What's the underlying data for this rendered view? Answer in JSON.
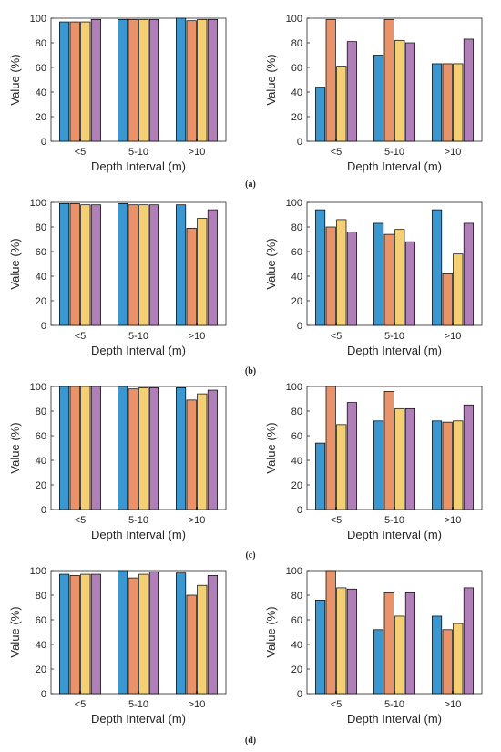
{
  "colors": {
    "series": [
      "#3a97cf",
      "#e8936a",
      "#f4cf73",
      "#b07fb8"
    ],
    "axis": "#262626"
  },
  "panel_labels": [
    "(a)",
    "(b)",
    "(c)",
    "(d)"
  ],
  "chart_data": [
    {
      "type": "bar",
      "row": 0,
      "col": 0,
      "categories": [
        "<5",
        "5-10",
        ">10"
      ],
      "series": [
        {
          "values": [
            97,
            99,
            100
          ]
        },
        {
          "values": [
            97,
            99,
            98
          ]
        },
        {
          "values": [
            97,
            99,
            99
          ]
        },
        {
          "values": [
            99,
            99,
            99
          ]
        }
      ],
      "xlabel": "Depth Interval (m)",
      "ylabel": "Value (%)",
      "ylim": [
        0,
        100
      ],
      "yticks": [
        0,
        20,
        40,
        60,
        80,
        100
      ],
      "grid": false,
      "legend": "none"
    },
    {
      "type": "bar",
      "row": 0,
      "col": 1,
      "categories": [
        "<5",
        "5-10",
        ">10"
      ],
      "series": [
        {
          "values": [
            44,
            70,
            63
          ]
        },
        {
          "values": [
            99,
            99,
            63
          ]
        },
        {
          "values": [
            61,
            82,
            63
          ]
        },
        {
          "values": [
            81,
            80,
            83
          ]
        }
      ],
      "xlabel": "Depth Interval (m)",
      "ylabel": "Value (%)",
      "ylim": [
        0,
        100
      ],
      "yticks": [
        0,
        20,
        40,
        60,
        80,
        100
      ],
      "grid": false,
      "legend": "none"
    },
    {
      "type": "bar",
      "row": 1,
      "col": 0,
      "categories": [
        "<5",
        "5-10",
        ">10"
      ],
      "series": [
        {
          "values": [
            99,
            99,
            98
          ]
        },
        {
          "values": [
            99,
            98,
            79
          ]
        },
        {
          "values": [
            98,
            98,
            87
          ]
        },
        {
          "values": [
            98,
            98,
            94
          ]
        }
      ],
      "xlabel": "Depth Interval (m)",
      "ylabel": "Value (%)",
      "ylim": [
        0,
        100
      ],
      "yticks": [
        0,
        20,
        40,
        60,
        80,
        100
      ],
      "grid": false,
      "legend": "none"
    },
    {
      "type": "bar",
      "row": 1,
      "col": 1,
      "categories": [
        "<5",
        "5-10",
        ">10"
      ],
      "series": [
        {
          "values": [
            94,
            83,
            94
          ]
        },
        {
          "values": [
            80,
            74,
            42
          ]
        },
        {
          "values": [
            86,
            78,
            58
          ]
        },
        {
          "values": [
            76,
            68,
            83
          ]
        }
      ],
      "xlabel": "Depth Interval (m)",
      "ylabel": "Value (%)",
      "ylim": [
        0,
        100
      ],
      "yticks": [
        0,
        20,
        40,
        60,
        80,
        100
      ],
      "grid": false,
      "legend": "none"
    },
    {
      "type": "bar",
      "row": 2,
      "col": 0,
      "categories": [
        "<5",
        "5-10",
        ">10"
      ],
      "series": [
        {
          "values": [
            100,
            100,
            99
          ]
        },
        {
          "values": [
            100,
            98,
            89
          ]
        },
        {
          "values": [
            100,
            99,
            94
          ]
        },
        {
          "values": [
            100,
            99,
            97
          ]
        }
      ],
      "xlabel": "Depth Interval (m)",
      "ylabel": "Value (%)",
      "ylim": [
        0,
        100
      ],
      "yticks": [
        0,
        20,
        40,
        60,
        80,
        100
      ],
      "grid": false,
      "legend": "none"
    },
    {
      "type": "bar",
      "row": 2,
      "col": 1,
      "categories": [
        "<5",
        "5-10",
        ">10"
      ],
      "series": [
        {
          "values": [
            54,
            72,
            72
          ]
        },
        {
          "values": [
            100,
            96,
            71
          ]
        },
        {
          "values": [
            69,
            82,
            72
          ]
        },
        {
          "values": [
            87,
            82,
            85
          ]
        }
      ],
      "xlabel": "Depth Interval (m)",
      "ylabel": "Value (%)",
      "ylim": [
        0,
        100
      ],
      "yticks": [
        0,
        20,
        40,
        60,
        80,
        100
      ],
      "grid": false,
      "legend": "none"
    },
    {
      "type": "bar",
      "row": 3,
      "col": 0,
      "categories": [
        "<5",
        "5-10",
        ">10"
      ],
      "series": [
        {
          "values": [
            97,
            100,
            98
          ]
        },
        {
          "values": [
            96,
            94,
            80
          ]
        },
        {
          "values": [
            97,
            97,
            88
          ]
        },
        {
          "values": [
            97,
            99,
            96
          ]
        }
      ],
      "xlabel": "Depth Interval (m)",
      "ylabel": "Value (%)",
      "ylim": [
        0,
        100
      ],
      "yticks": [
        0,
        20,
        40,
        60,
        80,
        100
      ],
      "grid": false,
      "legend": "none"
    },
    {
      "type": "bar",
      "row": 3,
      "col": 1,
      "categories": [
        "<5",
        "5-10",
        ">10"
      ],
      "series": [
        {
          "values": [
            76,
            52,
            63
          ]
        },
        {
          "values": [
            100,
            82,
            52
          ]
        },
        {
          "values": [
            86,
            63,
            57
          ]
        },
        {
          "values": [
            85,
            82,
            86
          ]
        }
      ],
      "xlabel": "Depth Interval (m)",
      "ylabel": "Value (%)",
      "ylim": [
        0,
        100
      ],
      "yticks": [
        0,
        20,
        40,
        60,
        80,
        100
      ],
      "grid": false,
      "legend": "none"
    }
  ]
}
